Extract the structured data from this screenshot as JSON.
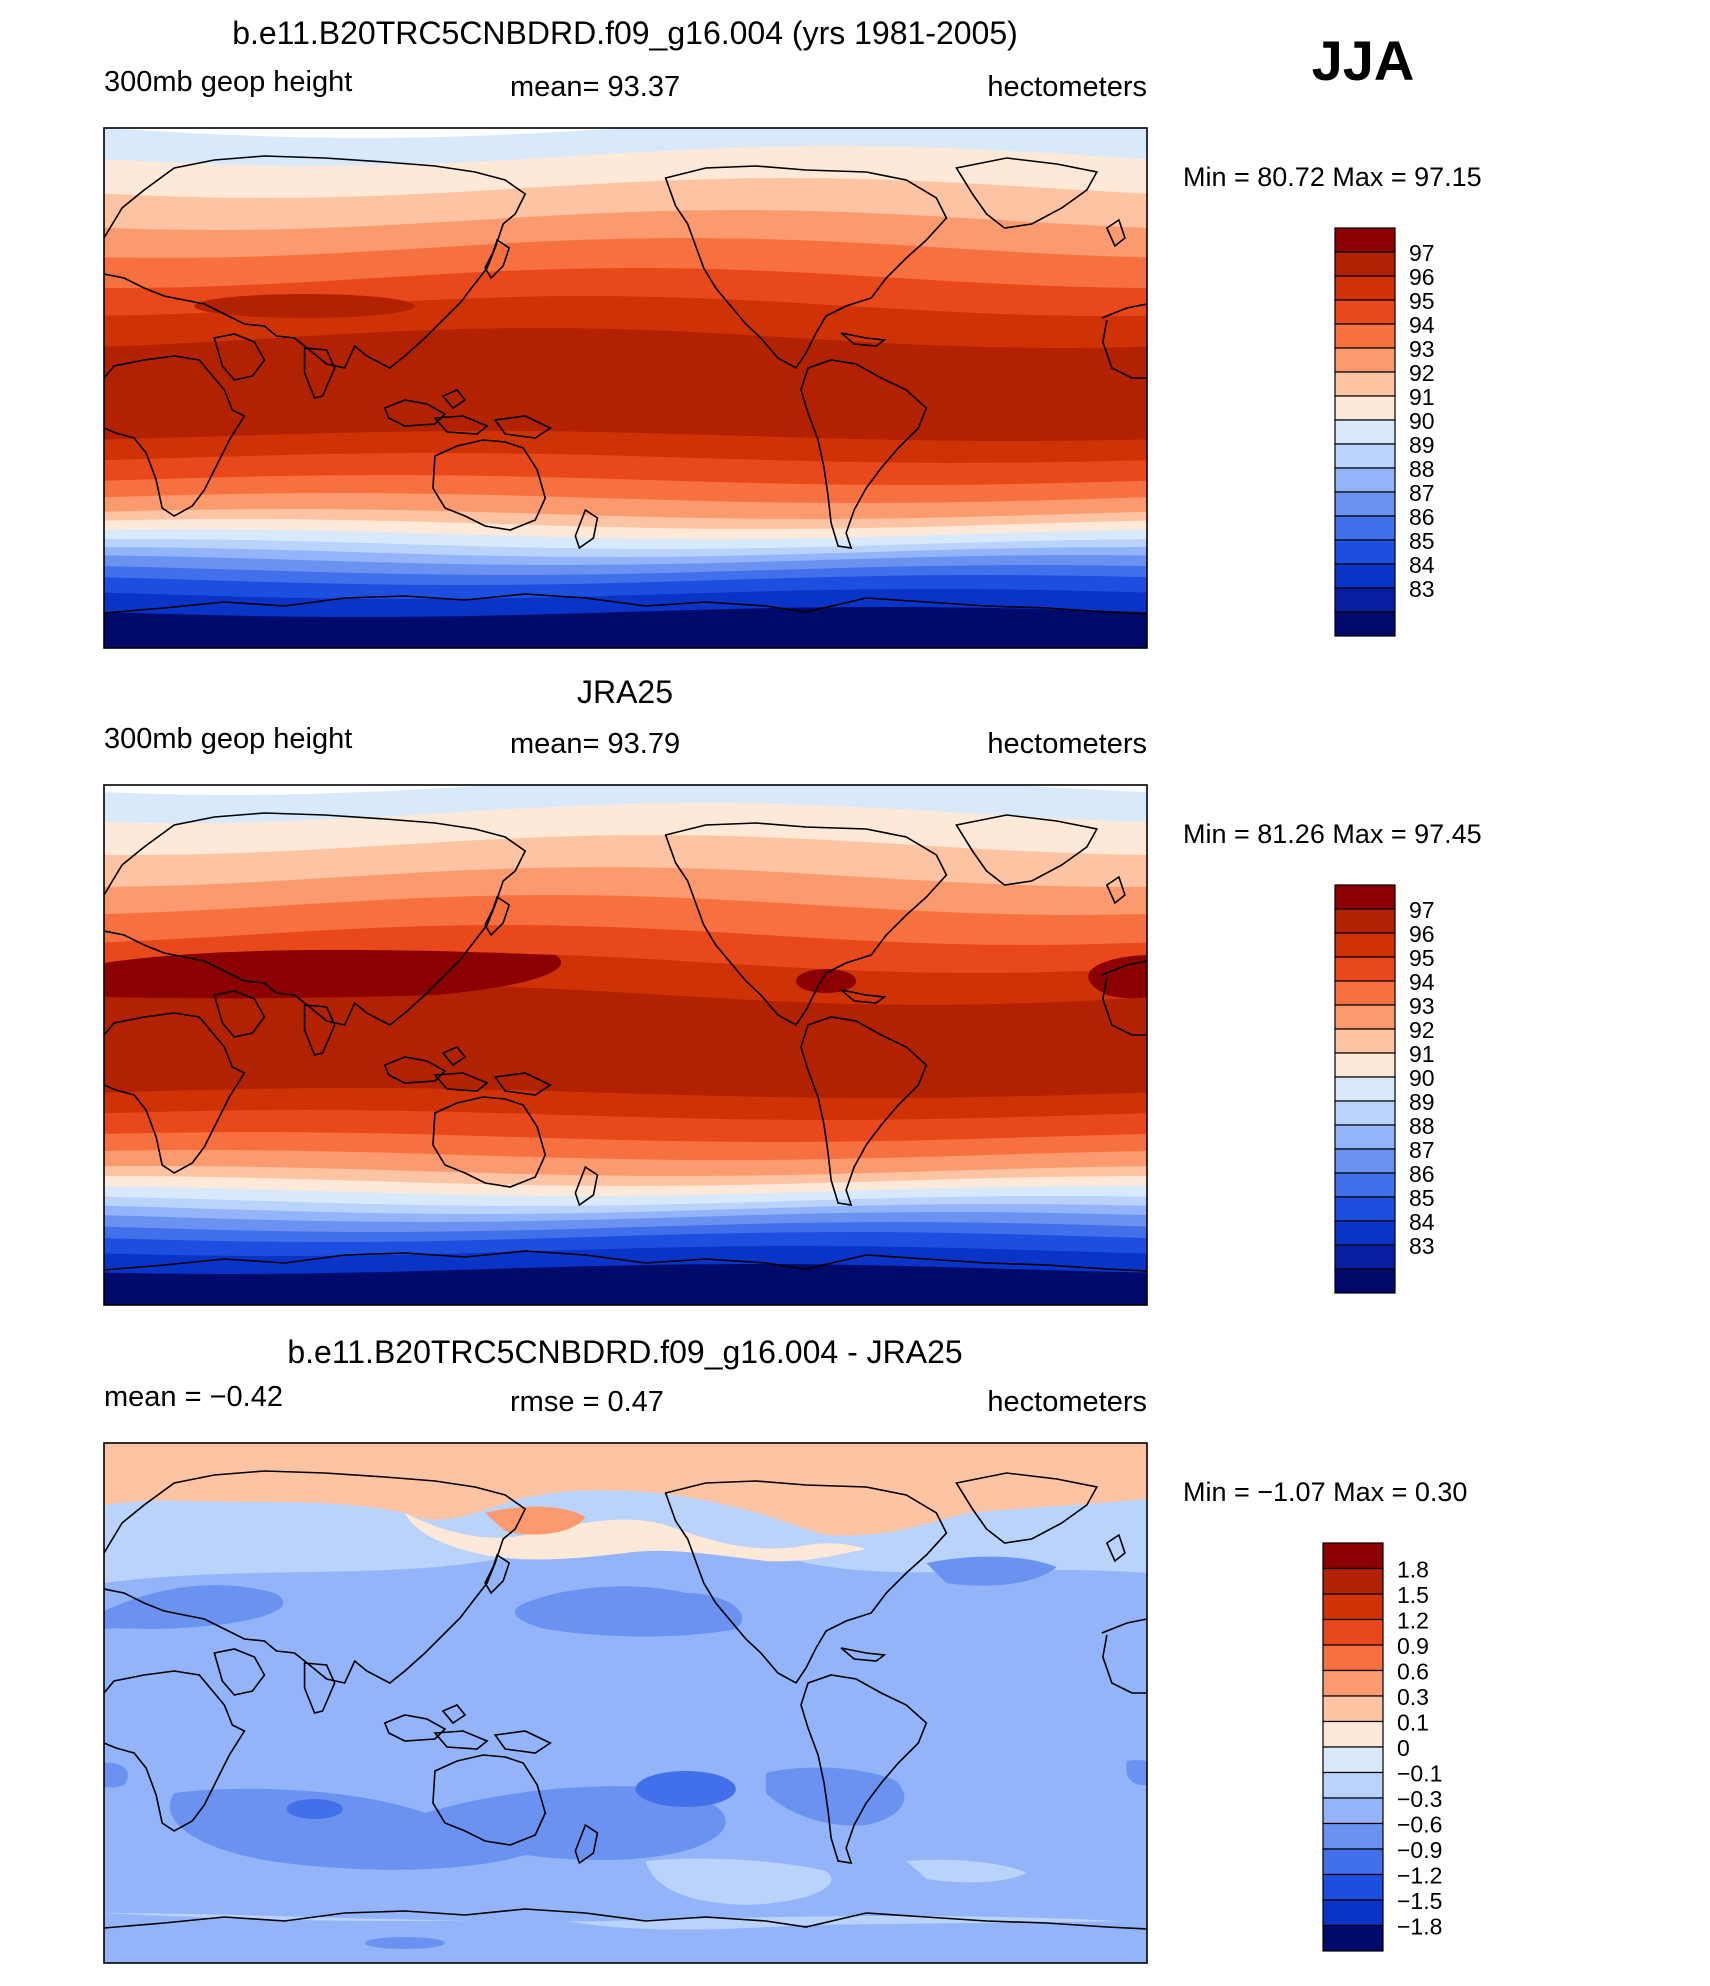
{
  "season": "JJA",
  "panels": [
    {
      "id": "model",
      "title": "b.e11.B20TRC5CNBDRD.f09_g16.004 (yrs 1981-2005)",
      "left_label": "300mb  geop  height",
      "center_label": "mean=   93.37",
      "right_label": "hectometers",
      "minmax": "Min  =    80.72  Max  =    97.15",
      "levels": [
        "97",
        "96",
        "95",
        "94",
        "93",
        "92",
        "91",
        "90",
        "89",
        "88",
        "87",
        "86",
        "85",
        "84",
        "83"
      ],
      "colors": [
        "#8b0000",
        "#b22200",
        "#cf3305",
        "#e8481a",
        "#f77040",
        "#fb9a6e",
        "#fdc4a3",
        "#fee8d8",
        "#d8e9fb",
        "#b9d3fa",
        "#93b4f8",
        "#6b92f1",
        "#4270ea",
        "#1c4fdf",
        "#0a33c8",
        "#061e9f",
        "#000a6b"
      ],
      "diverging": false
    },
    {
      "id": "obs",
      "title": "JRA25",
      "left_label": "300mb  geop  height",
      "center_label": "mean=   93.79",
      "right_label": "hectometers",
      "minmax": "Min  =    81.26  Max  =    97.45",
      "levels": [
        "97",
        "96",
        "95",
        "94",
        "93",
        "92",
        "91",
        "90",
        "89",
        "88",
        "87",
        "86",
        "85",
        "84",
        "83"
      ],
      "colors": [
        "#8b0000",
        "#b22200",
        "#cf3305",
        "#e8481a",
        "#f77040",
        "#fb9a6e",
        "#fdc4a3",
        "#fee8d8",
        "#d8e9fb",
        "#b9d3fa",
        "#93b4f8",
        "#6b92f1",
        "#4270ea",
        "#1c4fdf",
        "#0a33c8",
        "#061e9f",
        "#000a6b"
      ],
      "diverging": false
    },
    {
      "id": "diff",
      "title": "b.e11.B20TRC5CNBDRD.f09_g16.004 - JRA25",
      "left_label": "mean  =    −0.42",
      "center_label": "rmse  =     0.47",
      "right_label": "hectometers",
      "minmax": "Min  =   −1.07  Max  =     0.30",
      "levels": [
        "1.8",
        "1.5",
        "1.2",
        "0.9",
        "0.6",
        "0.3",
        "0.1",
        "0",
        "−0.1",
        "−0.3",
        "−0.6",
        "−0.9",
        "−1.2",
        "−1.5",
        "−1.8"
      ],
      "colors": [
        "#8b0000",
        "#b22200",
        "#cf3305",
        "#e8481a",
        "#f77040",
        "#fb9a6e",
        "#fdc4a3",
        "#fee8d8",
        "#d8e9fb",
        "#b9d3fa",
        "#93b4f8",
        "#6b92f1",
        "#4270ea",
        "#1c4fdf",
        "#0a33c8",
        "#000a6b"
      ],
      "diverging": true
    }
  ]
}
